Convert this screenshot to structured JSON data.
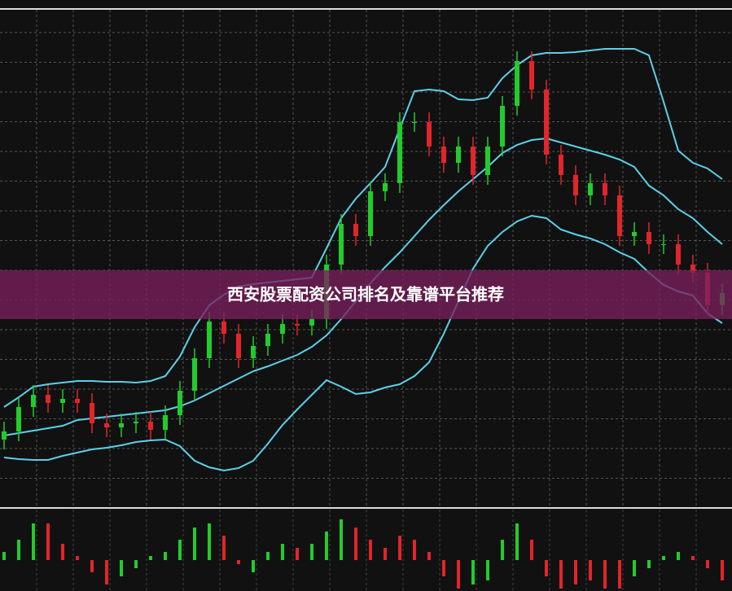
{
  "chart_data": [
    {
      "type": "candlestick",
      "title": "西安股票配资公司排名及靠谱平台推荐",
      "ylim": [
        0,
        560
      ],
      "up_color": "#22cc2c",
      "down_color": "#e3242b",
      "band_color": "#5cd0ea",
      "open": [
        60,
        70,
        100,
        115,
        105,
        110,
        105,
        80,
        75,
        80,
        82,
        72,
        90,
        120,
        160,
        205,
        190,
        160,
        175,
        190,
        202,
        200,
        208,
        275,
        325,
        310,
        365,
        375,
        450,
        450,
        420,
        400,
        420,
        385,
        420,
        470,
        525,
        490,
        410,
        385,
        360,
        375,
        360,
        310,
        315,
        300,
        300,
        275,
        265,
        225
      ],
      "close": [
        70,
        100,
        115,
        105,
        110,
        105,
        80,
        75,
        80,
        82,
        72,
        90,
        120,
        160,
        205,
        190,
        160,
        175,
        190,
        202,
        200,
        208,
        275,
        325,
        310,
        365,
        375,
        450,
        450,
        420,
        400,
        420,
        385,
        420,
        470,
        525,
        490,
        410,
        385,
        360,
        375,
        360,
        310,
        315,
        300,
        300,
        275,
        265,
        225,
        240
      ],
      "high": [
        82,
        112,
        127,
        127,
        122,
        122,
        117,
        92,
        92,
        94,
        94,
        102,
        132,
        172,
        217,
        217,
        202,
        187,
        202,
        214,
        214,
        220,
        287,
        337,
        337,
        377,
        387,
        462,
        462,
        462,
        432,
        432,
        432,
        432,
        482,
        537,
        537,
        502,
        422,
        397,
        387,
        387,
        372,
        327,
        327,
        312,
        312,
        287,
        277,
        252
      ],
      "low": [
        48,
        58,
        88,
        93,
        93,
        93,
        68,
        63,
        63,
        68,
        60,
        60,
        78,
        108,
        148,
        178,
        148,
        148,
        163,
        178,
        188,
        188,
        196,
        263,
        298,
        298,
        353,
        363,
        438,
        408,
        388,
        388,
        373,
        373,
        408,
        458,
        478,
        398,
        373,
        348,
        348,
        348,
        298,
        298,
        288,
        288,
        263,
        253,
        213,
        213
      ],
      "bands": [
        {
          "values": [
            100,
            112,
            125,
            128,
            130,
            132,
            132,
            131,
            131,
            130,
            132,
            138,
            162,
            198,
            225,
            238,
            248,
            251,
            253,
            255,
            257,
            259,
            295,
            332,
            356,
            375,
            395,
            442,
            488,
            490,
            488,
            478,
            477,
            480,
            504,
            520,
            532,
            535,
            535,
            536,
            538,
            540,
            540,
            540,
            532,
            475,
            415,
            400,
            393,
            380
          ]
        },
        {
          "values": [
            65,
            68,
            71,
            74,
            77,
            84,
            86,
            88,
            90,
            92,
            94,
            96,
            101,
            108,
            117,
            126,
            135,
            144,
            150,
            157,
            164,
            174,
            188,
            208,
            230,
            252,
            272,
            290,
            310,
            330,
            348,
            365,
            380,
            395,
            412,
            422,
            428,
            430,
            425,
            420,
            415,
            410,
            404,
            395,
            372,
            360,
            343,
            332,
            315,
            300
          ]
        },
        {
          "values": [
            38,
            36,
            35,
            35,
            40,
            44,
            48,
            50,
            53,
            57,
            59,
            60,
            52,
            34,
            26,
            22,
            25,
            34,
            55,
            78,
            97,
            115,
            133,
            125,
            116,
            118,
            124,
            128,
            138,
            155,
            190,
            230,
            270,
            298,
            315,
            328,
            335,
            332,
            318,
            312,
            307,
            300,
            290,
            282,
            265,
            250,
            242,
            237,
            215,
            203
          ]
        }
      ]
    },
    {
      "type": "bar",
      "ylim": [
        -38,
        63
      ],
      "values": [
        10,
        25,
        45,
        45,
        20,
        5,
        -15,
        -30,
        -20,
        -10,
        5,
        10,
        25,
        40,
        45,
        30,
        -5,
        -15,
        10,
        20,
        15,
        20,
        35,
        50,
        40,
        25,
        15,
        30,
        25,
        10,
        -20,
        -35,
        -30,
        -25,
        25,
        45,
        25,
        -20,
        -35,
        -30,
        -25,
        -35,
        -35,
        -20,
        -10,
        5,
        10,
        5,
        -10,
        -25
      ],
      "colors": [
        "#22cc2c",
        "#22cc2c",
        "#22cc2c",
        "#e3242b",
        "#e3242b",
        "#e3242b",
        "#e3242b",
        "#e3242b",
        "#22cc2c",
        "#22cc2c",
        "#22cc2c",
        "#22cc2c",
        "#22cc2c",
        "#22cc2c",
        "#22cc2c",
        "#e3242b",
        "#e3242b",
        "#22cc2c",
        "#22cc2c",
        "#22cc2c",
        "#e3242b",
        "#22cc2c",
        "#22cc2c",
        "#22cc2c",
        "#e3242b",
        "#e3242b",
        "#e3242b",
        "#e3242b",
        "#e3242b",
        "#e3242b",
        "#e3242b",
        "#e3242b",
        "#22cc2c",
        "#22cc2c",
        "#22cc2c",
        "#22cc2c",
        "#e3242b",
        "#e3242b",
        "#e3242b",
        "#e3242b",
        "#e3242b",
        "#e3242b",
        "#e3242b",
        "#22cc2c",
        "#22cc2c",
        "#22cc2c",
        "#22cc2c",
        "#e3242b",
        "#e3242b",
        "#e3242b"
      ]
    }
  ]
}
